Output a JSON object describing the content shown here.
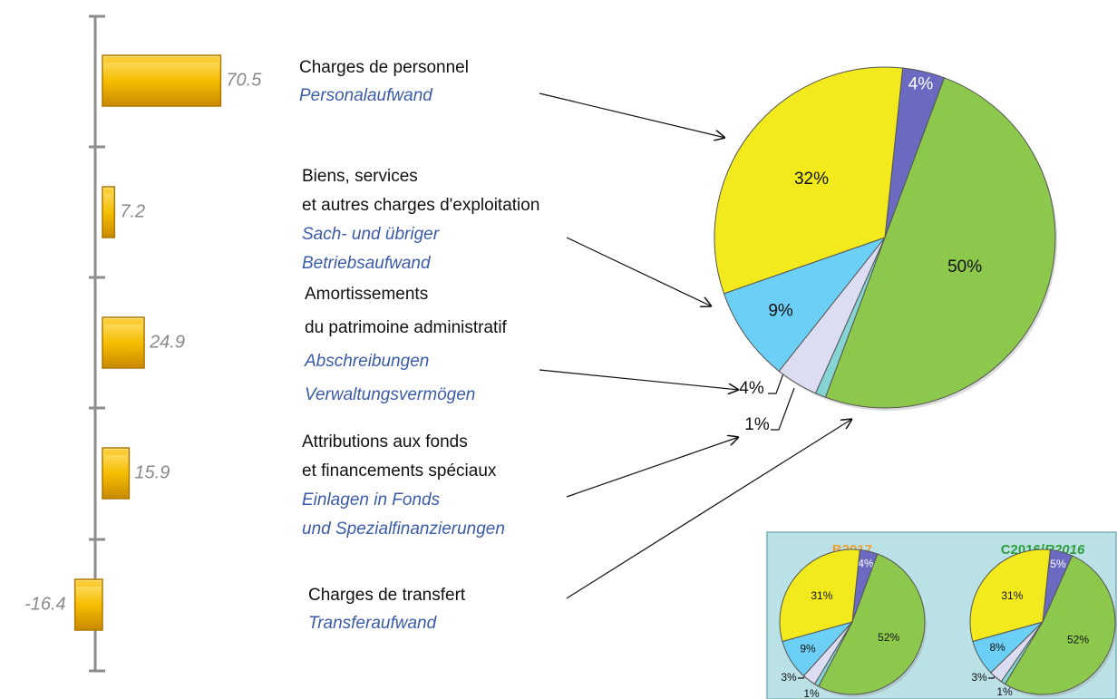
{
  "chart_data": [
    {
      "type": "bar",
      "orientation": "horizontal",
      "categories": [
        {
          "fr": [
            "Charges de personnel"
          ],
          "de": [
            "Personalaufwand"
          ]
        },
        {
          "fr": [
            "Biens, services",
            "et autres charges d'exploitation"
          ],
          "de": [
            "Sach- und übriger",
            "Betriebsaufwand"
          ]
        },
        {
          "fr": [
            "Amortissements",
            "du patrimoine administratif"
          ],
          "de": [
            "Abschreibungen",
            "Verwaltungsvermögen"
          ]
        },
        {
          "fr": [
            "Attributions aux fonds",
            "et financements spéciaux"
          ],
          "de": [
            "Einlagen in Fonds",
            "und Spezialfinanzierungen"
          ]
        },
        {
          "fr": [
            "Charges de transfert"
          ],
          "de": [
            "Transferaufwand"
          ]
        }
      ],
      "values": [
        70.5,
        7.2,
        24.9,
        15.9,
        -16.4
      ],
      "color": "#f5be00",
      "xlim": [
        -25,
        75
      ]
    },
    {
      "type": "pie",
      "values": [
        4,
        50,
        1,
        4,
        9,
        32
      ],
      "value_labels": [
        "4%",
        "50%",
        "1%",
        "4%",
        "9%",
        "32%"
      ],
      "colors": [
        "#6a6ac0",
        "#8cc84b",
        "#86d4d4",
        "#dcdcf2",
        "#6ccff5",
        "#f2ea1c"
      ]
    },
    {
      "type": "pie",
      "title": "B2017",
      "title_color": "#f0a030",
      "values": [
        4,
        52,
        1,
        3,
        9,
        31
      ],
      "value_labels": [
        "4%",
        "52%",
        "1%",
        "3%",
        "9%",
        "31%"
      ],
      "colors": [
        "#6a6ac0",
        "#8cc84b",
        "#86d4d4",
        "#dcdcf2",
        "#6ccff5",
        "#f2ea1c"
      ]
    },
    {
      "type": "pie",
      "title": [
        "C2016/",
        "R2016"
      ],
      "title_color": "#2f9e3a",
      "values": [
        5,
        52,
        1,
        3,
        8,
        31
      ],
      "value_labels": [
        "5%",
        "52%",
        "1%",
        "3%",
        "8%",
        "31%"
      ],
      "colors": [
        "#6a6ac0",
        "#8cc84b",
        "#86d4d4",
        "#dcdcf2",
        "#6ccff5",
        "#f2ea1c"
      ]
    }
  ]
}
